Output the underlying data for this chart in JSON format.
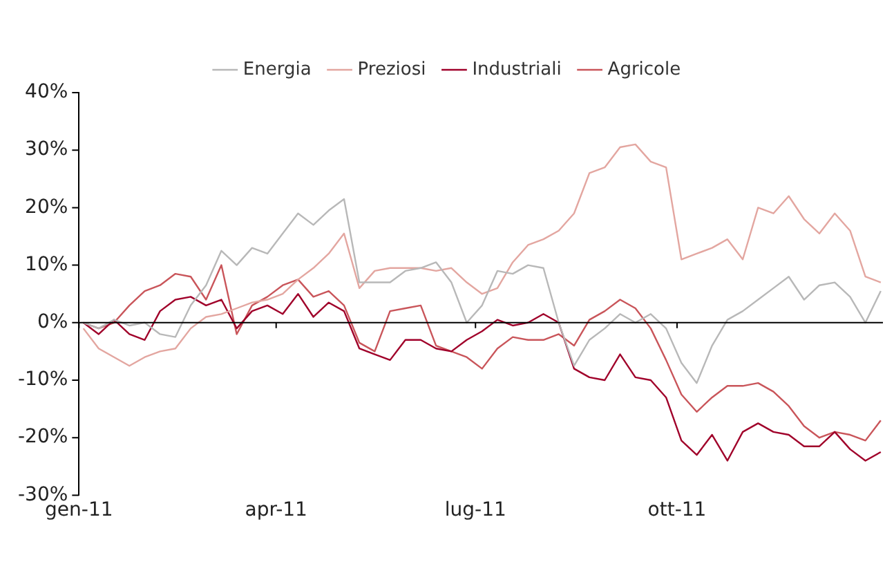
{
  "chart_data": {
    "type": "line",
    "x": [
      "2011-01-03",
      "2011-01-10",
      "2011-01-17",
      "2011-01-24",
      "2011-01-31",
      "2011-02-07",
      "2011-02-14",
      "2011-02-21",
      "2011-02-28",
      "2011-03-07",
      "2011-03-14",
      "2011-03-21",
      "2011-03-28",
      "2011-04-04",
      "2011-04-11",
      "2011-04-18",
      "2011-04-25",
      "2011-05-02",
      "2011-05-09",
      "2011-05-16",
      "2011-05-23",
      "2011-05-30",
      "2011-06-06",
      "2011-06-13",
      "2011-06-20",
      "2011-06-27",
      "2011-07-04",
      "2011-07-11",
      "2011-07-18",
      "2011-07-25",
      "2011-08-01",
      "2011-08-08",
      "2011-08-15",
      "2011-08-22",
      "2011-08-29",
      "2011-09-05",
      "2011-09-12",
      "2011-09-19",
      "2011-09-26",
      "2011-10-03",
      "2011-10-10",
      "2011-10-17",
      "2011-10-24",
      "2011-10-31",
      "2011-11-07",
      "2011-11-14",
      "2011-11-21",
      "2011-11-28",
      "2011-12-05",
      "2011-12-12",
      "2011-12-19",
      "2011-12-26",
      "2012-01-02"
    ],
    "series": [
      {
        "name": "Energia",
        "color": "#b8b8b8",
        "values": [
          0,
          -1,
          0.5,
          -0.5,
          0,
          -2,
          -2.5,
          3,
          6.5,
          12.5,
          10,
          13,
          12,
          15.5,
          19,
          17,
          19.5,
          21.5,
          7,
          7,
          7,
          9,
          9.5,
          10.5,
          7,
          0,
          3,
          9,
          8.5,
          10,
          9.5,
          0,
          -7.5,
          -3,
          -1,
          1.5,
          0,
          1.5,
          -1,
          -7,
          -10.5,
          -4,
          0.5,
          2,
          4,
          6,
          8,
          4,
          6.5,
          7,
          4.5,
          0,
          5.5
        ]
      },
      {
        "name": "Preziosi",
        "color": "#e3a6a0",
        "values": [
          -1,
          -4.5,
          -6,
          -7.5,
          -6,
          -5,
          -4.5,
          -1,
          1,
          1.5,
          2.5,
          3.5,
          4,
          5,
          7.5,
          9.5,
          12,
          15.5,
          6,
          9,
          9.5,
          9.5,
          9.5,
          9,
          9.5,
          7,
          5,
          6,
          10.5,
          13.5,
          14.5,
          16,
          19,
          26,
          27,
          30.5,
          31,
          28,
          27,
          11,
          12,
          13,
          14.5,
          11,
          20,
          19,
          22,
          18,
          15.5,
          19,
          16,
          8,
          7
        ]
      },
      {
        "name": "Industriali",
        "color": "#a0002a",
        "values": [
          0,
          -2,
          0.5,
          -2,
          -3,
          2,
          4,
          4.5,
          3,
          4,
          -1,
          2,
          3,
          1.5,
          5,
          1,
          3.5,
          2,
          -4.5,
          -5.5,
          -6.5,
          -3,
          -3,
          -4.5,
          -5,
          -3,
          -1.5,
          0.5,
          -0.5,
          0,
          1.5,
          0,
          -8,
          -9.5,
          -10,
          -5.5,
          -9.5,
          -10,
          -13,
          -20.5,
          -23,
          -19.5,
          -24,
          -19,
          -17.5,
          -19,
          -19.5,
          -21.5,
          -21.5,
          -19,
          -22,
          -24,
          -22.5
        ]
      },
      {
        "name": "Agricole",
        "color": "#c9555a",
        "values": [
          0,
          -1,
          0,
          3,
          5.5,
          6.5,
          8.5,
          8,
          4,
          10,
          -2,
          3,
          4.5,
          6.5,
          7.5,
          4.5,
          5.5,
          3,
          -3.5,
          -5,
          2,
          2.5,
          3,
          -4,
          -5,
          -6,
          -8,
          -4.5,
          -2.5,
          -3,
          -3,
          -2,
          -4,
          0.5,
          2,
          4,
          2.5,
          -1,
          -6.5,
          -12.5,
          -15.5,
          -13,
          -11,
          -11,
          -10.5,
          -12,
          -14.5,
          -18,
          -20,
          -19,
          -19.5,
          -20.5,
          -17
        ]
      }
    ],
    "xlim": [
      "2011-01-01",
      "2012-01-03"
    ],
    "xticks": [
      {
        "value": "2011-01-01",
        "label": "gen-11"
      },
      {
        "value": "2011-04-01",
        "label": "apr-11"
      },
      {
        "value": "2011-07-01",
        "label": "lug-11"
      },
      {
        "value": "2011-10-01",
        "label": "ott-11"
      }
    ],
    "ylim": [
      -30,
      40
    ],
    "yticks": [
      {
        "value": -30,
        "label": "-30%"
      },
      {
        "value": -20,
        "label": "-20%"
      },
      {
        "value": -10,
        "label": "-10%"
      },
      {
        "value": 0,
        "label": "0%"
      },
      {
        "value": 10,
        "label": "10%"
      },
      {
        "value": 20,
        "label": "20%"
      },
      {
        "value": 30,
        "label": "30%"
      },
      {
        "value": 40,
        "label": "40%"
      }
    ],
    "ref_lines": [
      {
        "axis": "y",
        "value": 0,
        "color": "#000000"
      }
    ],
    "legend": "top",
    "grid": false,
    "marker": "none",
    "line_style": "solid"
  }
}
